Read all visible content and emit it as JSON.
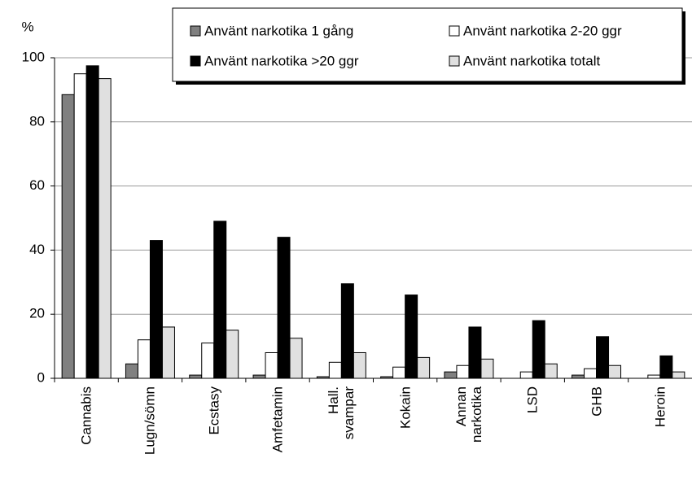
{
  "chart_data": {
    "type": "bar",
    "y_label": "%",
    "categories": [
      "Cannabis",
      "Lugn/sömn",
      "Ecstasy",
      "Amfetamin",
      "Hall.\nsvampar",
      "Kokain",
      "Annan\nnarkotika",
      "LSD",
      "GHB",
      "Heroin"
    ],
    "series": [
      {
        "name": "Använt narkotika 1 gång",
        "color": "#808080",
        "values": [
          88.5,
          4.5,
          1,
          1,
          0.5,
          0.5,
          2,
          0,
          1,
          0
        ]
      },
      {
        "name": "Använt narkotika 2-20 ggr",
        "color": "#ffffff",
        "values": [
          95,
          12,
          11,
          8,
          5,
          3.5,
          4,
          2,
          3,
          1
        ]
      },
      {
        "name": "Använt narkotika >20 ggr",
        "color": "#000000",
        "values": [
          97.5,
          43,
          49,
          44,
          29.5,
          26,
          16,
          18,
          13,
          7
        ]
      },
      {
        "name": "Använt narkotika totalt",
        "color": "#e0e0e0",
        "values": [
          93.5,
          16,
          15,
          12.5,
          8,
          6.5,
          6,
          4.5,
          4,
          2
        ]
      }
    ],
    "ylim": [
      0,
      100
    ],
    "yticks": [
      0,
      20,
      40,
      60,
      80,
      100
    ],
    "grid": true,
    "legend": "top-right"
  }
}
